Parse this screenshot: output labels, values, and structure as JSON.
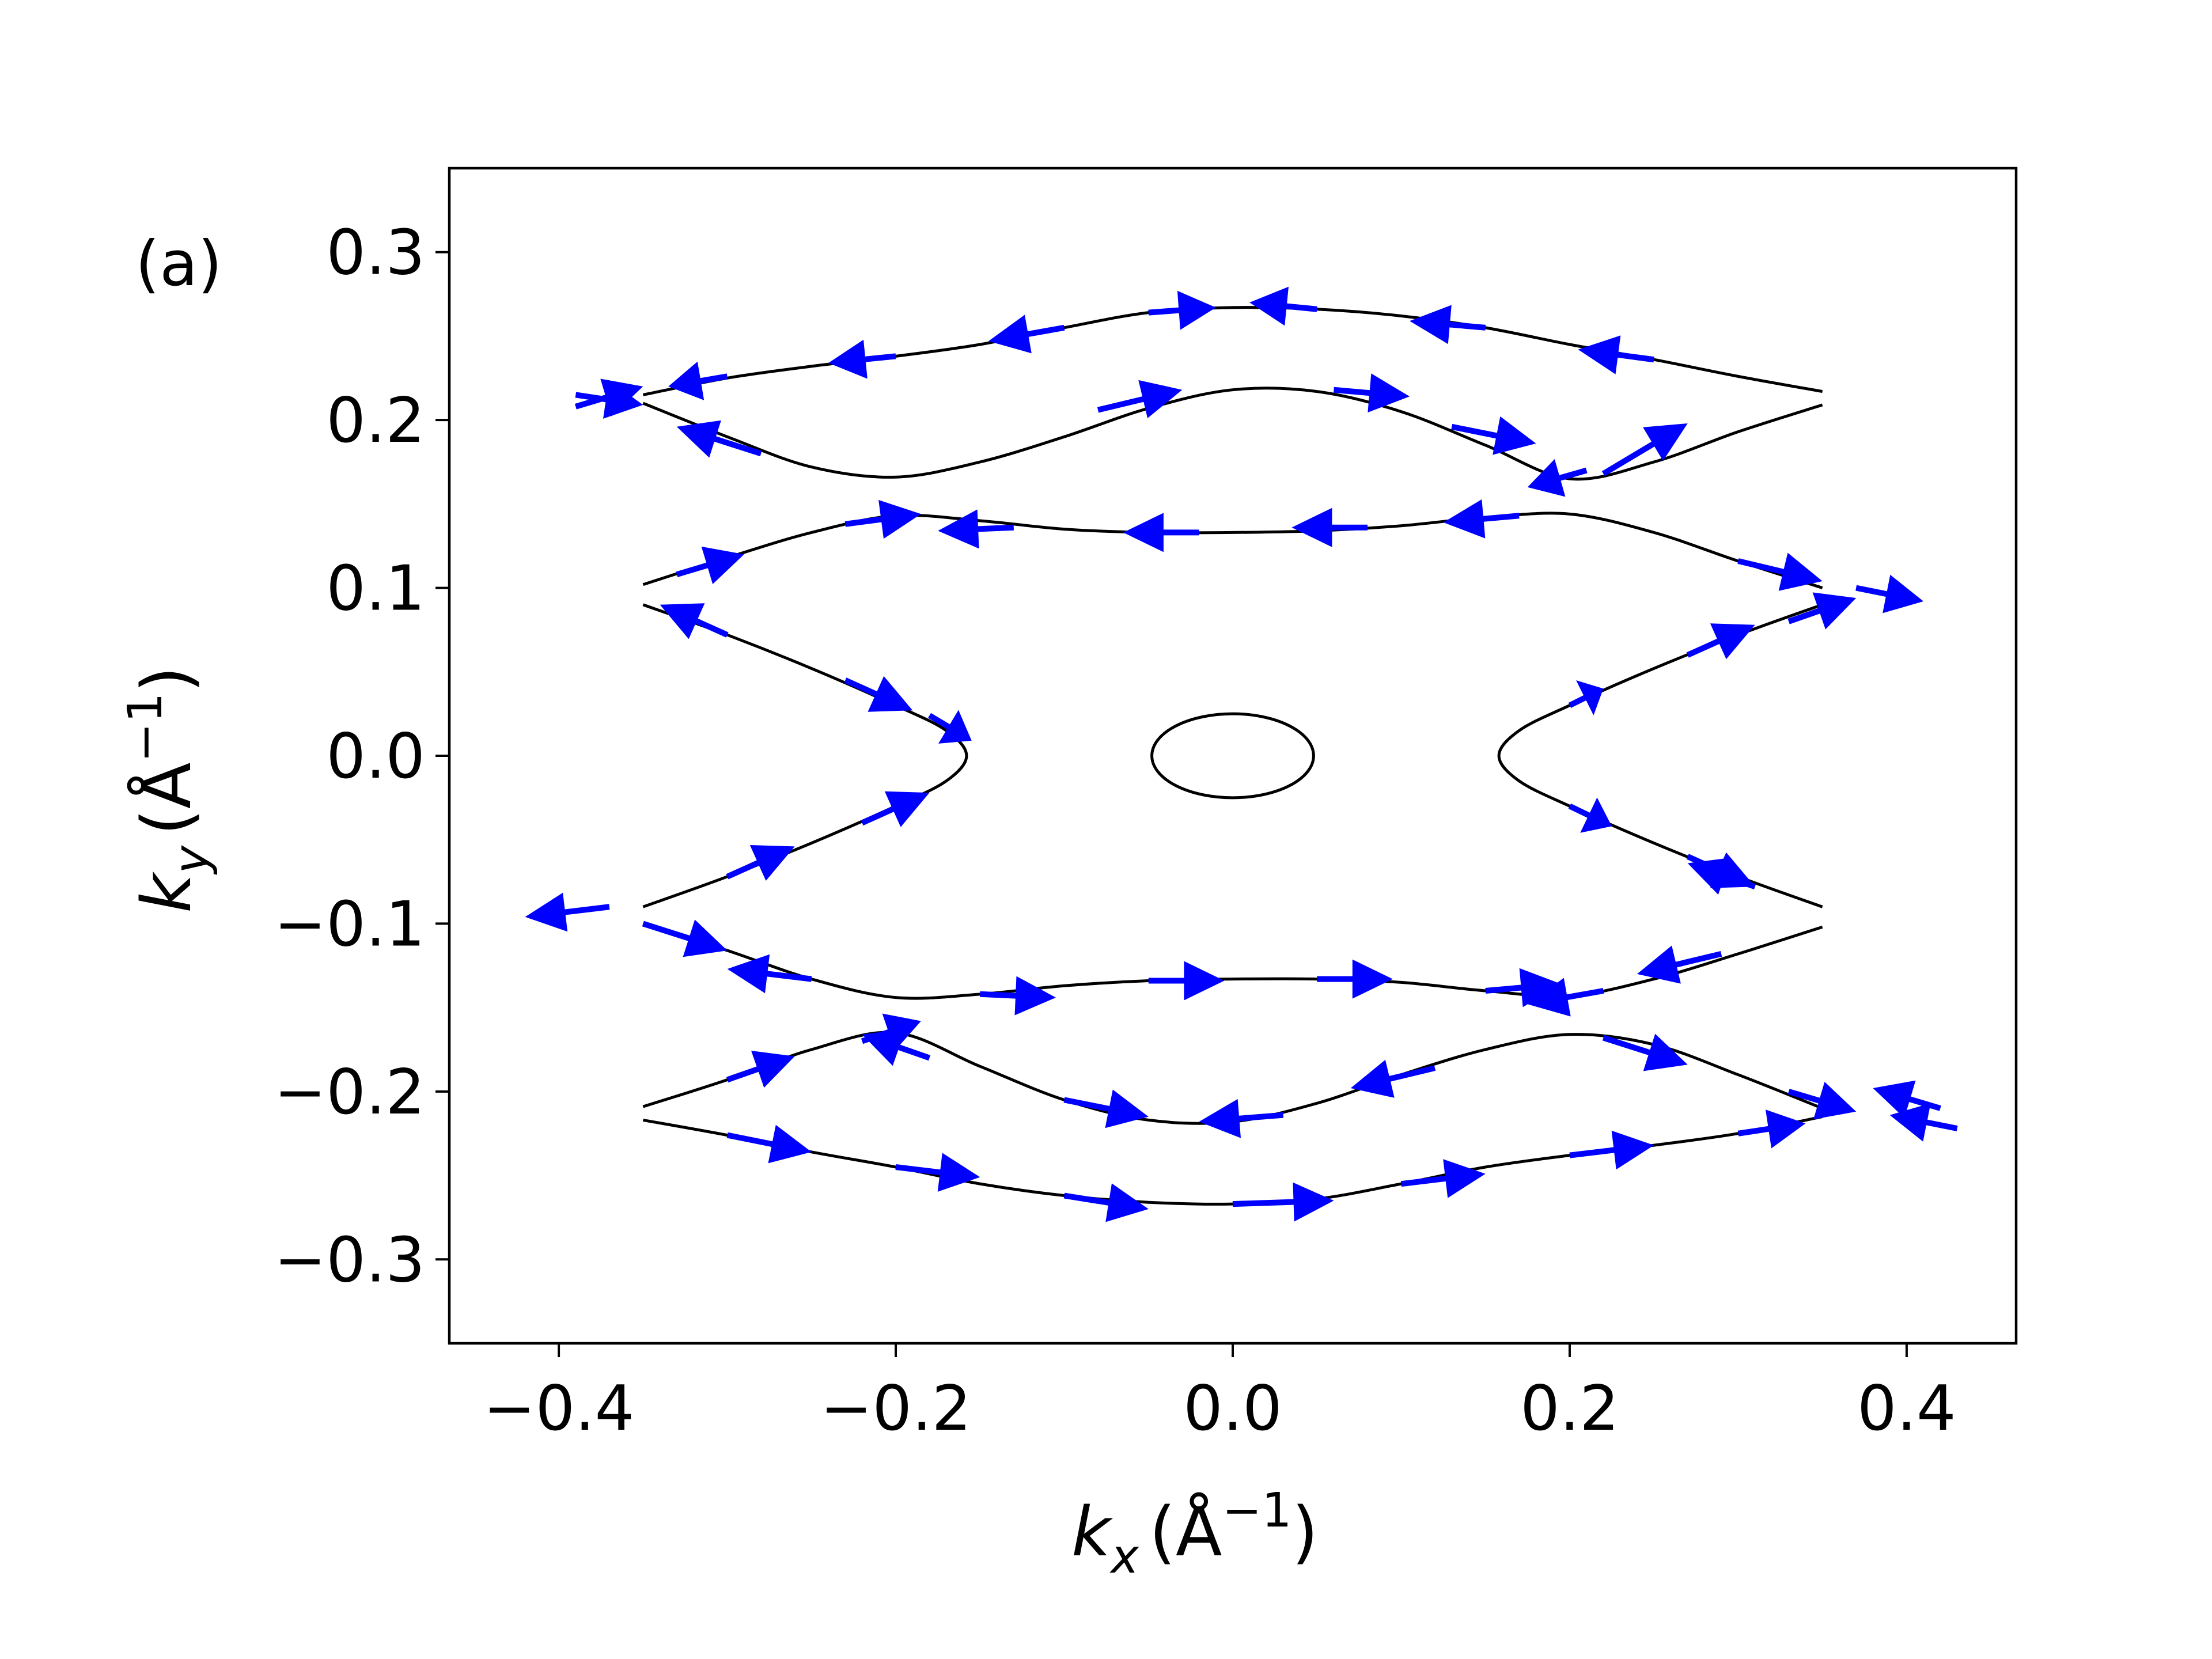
{
  "chart_data": {
    "type": "line",
    "panel_label": "(a)",
    "xlabel": {
      "symbol": "k",
      "sub": "x",
      "unit": "(Å",
      "exp": "−1",
      "close": ")"
    },
    "ylabel": {
      "symbol": "k",
      "sub": "y",
      "unit": "(Å",
      "exp": "−1",
      "close": ")"
    },
    "xlim": [
      -0.465,
      0.465
    ],
    "ylim": [
      -0.35,
      0.35
    ],
    "xticks": [
      -0.4,
      -0.2,
      0.0,
      0.2,
      0.4
    ],
    "xtick_labels": [
      "−0.4",
      "−0.2",
      "0.0",
      "0.2",
      "0.4"
    ],
    "yticks": [
      -0.3,
      -0.2,
      -0.1,
      0.0,
      0.1,
      0.2,
      0.3
    ],
    "ytick_labels": [
      "−0.3",
      "−0.2",
      "−0.1",
      "0.0",
      "0.1",
      "0.2",
      "0.3"
    ],
    "grid": false,
    "line_color": "#000000",
    "arrow_color": "#0000ff",
    "curves": [
      {
        "x": [
          -0.35,
          -0.3,
          -0.25,
          -0.2,
          -0.15,
          -0.1,
          -0.05,
          0.0,
          0.05,
          0.1,
          0.15,
          0.2,
          0.25,
          0.3,
          0.35
        ],
        "y": [
          0.215,
          0.225,
          0.232,
          0.238,
          0.245,
          0.255,
          0.264,
          0.267,
          0.266,
          0.262,
          0.255,
          0.245,
          0.236,
          0.226,
          0.217
        ]
      },
      {
        "x": [
          -0.35,
          -0.3,
          -0.25,
          -0.2,
          -0.15,
          -0.1,
          -0.05,
          0.0,
          0.05,
          0.1,
          0.15,
          0.2,
          0.25,
          0.3,
          0.35
        ],
        "y": [
          0.21,
          0.19,
          0.172,
          0.166,
          0.175,
          0.19,
          0.207,
          0.218,
          0.217,
          0.205,
          0.185,
          0.165,
          0.175,
          0.193,
          0.209
        ]
      },
      {
        "x": [
          -0.35,
          -0.3,
          -0.25,
          -0.2,
          -0.15,
          -0.1,
          -0.05,
          0.0,
          0.05,
          0.1,
          0.15,
          0.2,
          0.25,
          0.3,
          0.35
        ],
        "y": [
          0.102,
          0.118,
          0.133,
          0.143,
          0.14,
          0.135,
          0.133,
          0.133,
          0.134,
          0.137,
          0.142,
          0.144,
          0.133,
          0.116,
          0.1
        ]
      },
      {
        "x": [
          -0.35,
          -0.3,
          -0.25,
          -0.2,
          -0.17,
          -0.158,
          -0.17,
          -0.2,
          -0.25,
          -0.3,
          -0.35
        ],
        "y": [
          0.09,
          0.072,
          0.052,
          0.03,
          0.015,
          0.0,
          -0.015,
          -0.03,
          -0.052,
          -0.072,
          -0.09
        ]
      },
      {
        "x": [
          0.35,
          0.3,
          0.25,
          0.2,
          0.17,
          0.158,
          0.17,
          0.2,
          0.25,
          0.3,
          0.35
        ],
        "y": [
          0.09,
          0.072,
          0.052,
          0.03,
          0.015,
          0.0,
          -0.015,
          -0.03,
          -0.052,
          -0.072,
          -0.09
        ]
      },
      {
        "x": [
          -0.35,
          -0.3,
          -0.25,
          -0.2,
          -0.15,
          -0.1,
          -0.05,
          0.0,
          0.05,
          0.1,
          0.15,
          0.2,
          0.25,
          0.3,
          0.35
        ],
        "y": [
          -0.1,
          -0.116,
          -0.133,
          -0.144,
          -0.142,
          -0.137,
          -0.134,
          -0.133,
          -0.133,
          -0.135,
          -0.14,
          -0.143,
          -0.133,
          -0.118,
          -0.102
        ]
      },
      {
        "x": [
          -0.35,
          -0.3,
          -0.25,
          -0.2,
          -0.15,
          -0.1,
          -0.05,
          0.0,
          0.05,
          0.1,
          0.15,
          0.2,
          0.25,
          0.3,
          0.35
        ],
        "y": [
          -0.209,
          -0.193,
          -0.175,
          -0.165,
          -0.185,
          -0.205,
          -0.217,
          -0.218,
          -0.207,
          -0.19,
          -0.175,
          -0.166,
          -0.172,
          -0.19,
          -0.21
        ]
      },
      {
        "x": [
          -0.35,
          -0.3,
          -0.25,
          -0.2,
          -0.15,
          -0.1,
          -0.05,
          0.0,
          0.05,
          0.1,
          0.15,
          0.2,
          0.25,
          0.3,
          0.35
        ],
        "y": [
          -0.217,
          -0.226,
          -0.236,
          -0.245,
          -0.255,
          -0.262,
          -0.266,
          -0.267,
          -0.264,
          -0.255,
          -0.245,
          -0.238,
          -0.232,
          -0.225,
          -0.215
        ]
      },
      {
        "ellipse": true,
        "cx": 0.0,
        "cy": 0.0,
        "rx": 0.048,
        "ry": 0.025
      }
    ],
    "arrows": [
      {
        "x": -0.3,
        "y": 0.226,
        "dx": -0.035,
        "dy": -0.006
      },
      {
        "x": -0.2,
        "y": 0.238,
        "dx": -0.04,
        "dy": -0.004
      },
      {
        "x": -0.1,
        "y": 0.255,
        "dx": -0.045,
        "dy": -0.008
      },
      {
        "x": -0.05,
        "y": 0.264,
        "dx": 0.04,
        "dy": 0.003
      },
      {
        "x": 0.05,
        "y": 0.266,
        "dx": -0.04,
        "dy": 0.004
      },
      {
        "x": 0.15,
        "y": 0.255,
        "dx": -0.045,
        "dy": 0.004
      },
      {
        "x": 0.25,
        "y": 0.236,
        "dx": -0.045,
        "dy": 0.006
      },
      {
        "x": -0.39,
        "y": 0.215,
        "dx": 0.04,
        "dy": -0.006
      },
      {
        "x": -0.39,
        "y": 0.208,
        "dx": 0.04,
        "dy": 0.012
      },
      {
        "x": -0.28,
        "y": 0.18,
        "dx": -0.05,
        "dy": 0.016
      },
      {
        "x": -0.08,
        "y": 0.206,
        "dx": 0.05,
        "dy": 0.012
      },
      {
        "x": 0.06,
        "y": 0.218,
        "dx": 0.045,
        "dy": -0.004
      },
      {
        "x": 0.13,
        "y": 0.196,
        "dx": 0.05,
        "dy": -0.01
      },
      {
        "x": 0.22,
        "y": 0.168,
        "dx": 0.05,
        "dy": 0.03
      },
      {
        "x": 0.21,
        "y": 0.17,
        "dx": -0.035,
        "dy": -0.01
      },
      {
        "x": -0.33,
        "y": 0.108,
        "dx": 0.04,
        "dy": 0.012
      },
      {
        "x": -0.23,
        "y": 0.138,
        "dx": 0.045,
        "dy": 0.006
      },
      {
        "x": -0.13,
        "y": 0.136,
        "dx": -0.045,
        "dy": -0.002
      },
      {
        "x": -0.02,
        "y": 0.133,
        "dx": -0.045,
        "dy": 0.0
      },
      {
        "x": 0.08,
        "y": 0.136,
        "dx": -0.045,
        "dy": 0.0
      },
      {
        "x": 0.17,
        "y": 0.143,
        "dx": -0.045,
        "dy": -0.004
      },
      {
        "x": 0.3,
        "y": 0.116,
        "dx": 0.05,
        "dy": -0.012
      },
      {
        "x": 0.37,
        "y": 0.1,
        "dx": 0.04,
        "dy": -0.008
      },
      {
        "x": -0.3,
        "y": 0.072,
        "dx": -0.04,
        "dy": 0.018
      },
      {
        "x": -0.23,
        "y": 0.045,
        "dx": 0.04,
        "dy": -0.018
      },
      {
        "x": -0.18,
        "y": 0.024,
        "dx": 0.025,
        "dy": -0.015
      },
      {
        "x": 0.2,
        "y": 0.03,
        "dx": 0.02,
        "dy": 0.01
      },
      {
        "x": 0.27,
        "y": 0.06,
        "dx": 0.04,
        "dy": 0.018
      },
      {
        "x": 0.33,
        "y": 0.08,
        "dx": 0.04,
        "dy": 0.014
      },
      {
        "x": -0.22,
        "y": -0.04,
        "dx": 0.04,
        "dy": 0.018
      },
      {
        "x": -0.3,
        "y": -0.072,
        "dx": 0.04,
        "dy": 0.018
      },
      {
        "x": -0.37,
        "y": -0.09,
        "dx": -0.05,
        "dy": -0.006
      },
      {
        "x": 0.2,
        "y": -0.03,
        "dx": 0.025,
        "dy": -0.012
      },
      {
        "x": 0.27,
        "y": -0.06,
        "dx": 0.04,
        "dy": -0.018
      },
      {
        "x": 0.31,
        "y": -0.078,
        "dx": -0.04,
        "dy": 0.014
      },
      {
        "x": -0.35,
        "y": -0.1,
        "dx": 0.05,
        "dy": -0.016
      },
      {
        "x": -0.25,
        "y": -0.133,
        "dx": -0.05,
        "dy": 0.006
      },
      {
        "x": -0.15,
        "y": -0.142,
        "dx": 0.045,
        "dy": -0.002
      },
      {
        "x": -0.05,
        "y": -0.134,
        "dx": 0.045,
        "dy": 0.0
      },
      {
        "x": 0.05,
        "y": -0.133,
        "dx": 0.045,
        "dy": 0.0
      },
      {
        "x": 0.15,
        "y": -0.14,
        "dx": 0.045,
        "dy": 0.004
      },
      {
        "x": 0.22,
        "y": -0.14,
        "dx": -0.045,
        "dy": -0.008
      },
      {
        "x": 0.29,
        "y": -0.118,
        "dx": -0.05,
        "dy": -0.012
      },
      {
        "x": -0.3,
        "y": -0.193,
        "dx": 0.04,
        "dy": 0.014
      },
      {
        "x": -0.22,
        "y": -0.17,
        "dx": 0.035,
        "dy": 0.012
      },
      {
        "x": -0.18,
        "y": -0.18,
        "dx": -0.04,
        "dy": 0.014
      },
      {
        "x": -0.1,
        "y": -0.205,
        "dx": 0.05,
        "dy": -0.01
      },
      {
        "x": 0.03,
        "y": -0.214,
        "dx": -0.05,
        "dy": -0.004
      },
      {
        "x": 0.12,
        "y": -0.186,
        "dx": -0.05,
        "dy": -0.012
      },
      {
        "x": 0.22,
        "y": -0.168,
        "dx": 0.05,
        "dy": -0.016
      },
      {
        "x": 0.33,
        "y": -0.2,
        "dx": 0.04,
        "dy": -0.012
      },
      {
        "x": 0.42,
        "y": -0.21,
        "dx": -0.04,
        "dy": 0.012
      },
      {
        "x": 0.43,
        "y": -0.222,
        "dx": -0.04,
        "dy": 0.008
      },
      {
        "x": -0.3,
        "y": -0.226,
        "dx": 0.05,
        "dy": -0.01
      },
      {
        "x": -0.2,
        "y": -0.245,
        "dx": 0.05,
        "dy": -0.006
      },
      {
        "x": -0.1,
        "y": -0.262,
        "dx": 0.05,
        "dy": -0.008
      },
      {
        "x": 0.0,
        "y": -0.267,
        "dx": 0.06,
        "dy": 0.002
      },
      {
        "x": 0.1,
        "y": -0.255,
        "dx": 0.05,
        "dy": 0.006
      },
      {
        "x": 0.2,
        "y": -0.238,
        "dx": 0.05,
        "dy": 0.006
      },
      {
        "x": 0.3,
        "y": -0.225,
        "dx": 0.04,
        "dy": 0.006
      }
    ]
  }
}
